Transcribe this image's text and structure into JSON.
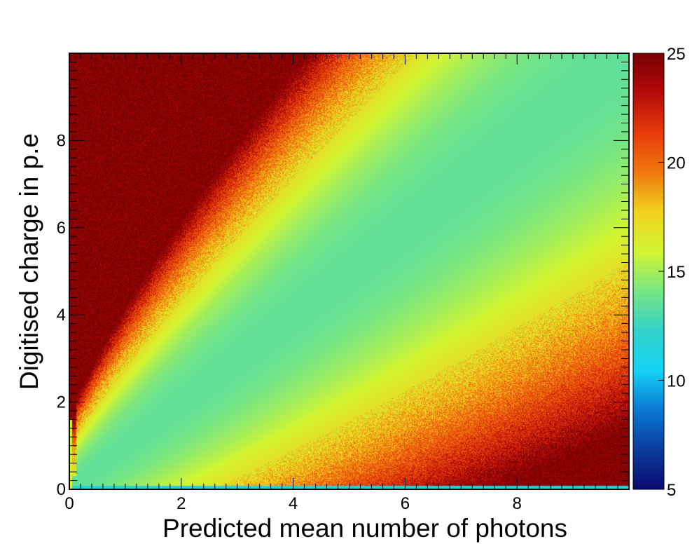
{
  "chart_data": {
    "type": "heatmap",
    "title": "",
    "xlabel": "Predicted mean number of photons",
    "ylabel": "Digitised charge in p.e",
    "xlim": [
      0,
      10
    ],
    "ylim": [
      0,
      10
    ],
    "x_ticks": [
      "0",
      "2",
      "4",
      "6",
      "8"
    ],
    "y_ticks": [
      "0",
      "2",
      "4",
      "6",
      "8"
    ],
    "colorbar": {
      "zlim": [
        5,
        25
      ],
      "ticks": [
        "5",
        "10",
        "15",
        "20",
        "25"
      ],
      "palette": [
        "#0a0a6e",
        "#0a3c9c",
        "#0a78d2",
        "#14d2f5",
        "#32d2c8",
        "#78e682",
        "#d2f532",
        "#f0d21e",
        "#f0780f",
        "#e63c0a",
        "#b40a0a",
        "#780000"
      ]
    },
    "regions": [
      {
        "description_x": [
          0,
          0.5
        ],
        "description_y": [
          4,
          10
        ],
        "approx_value": 22
      },
      {
        "description_x": [
          2,
          8
        ],
        "description_y": [
          2,
          8
        ],
        "approx_value": 14
      },
      {
        "description_x": [
          0,
          3
        ],
        "description_y": [
          0,
          1.5
        ],
        "approx_value": 12
      },
      {
        "description_x": [
          8,
          10
        ],
        "description_y": [
          0,
          1
        ],
        "approx_value": 21
      }
    ],
    "grid": false,
    "legend": "none"
  }
}
